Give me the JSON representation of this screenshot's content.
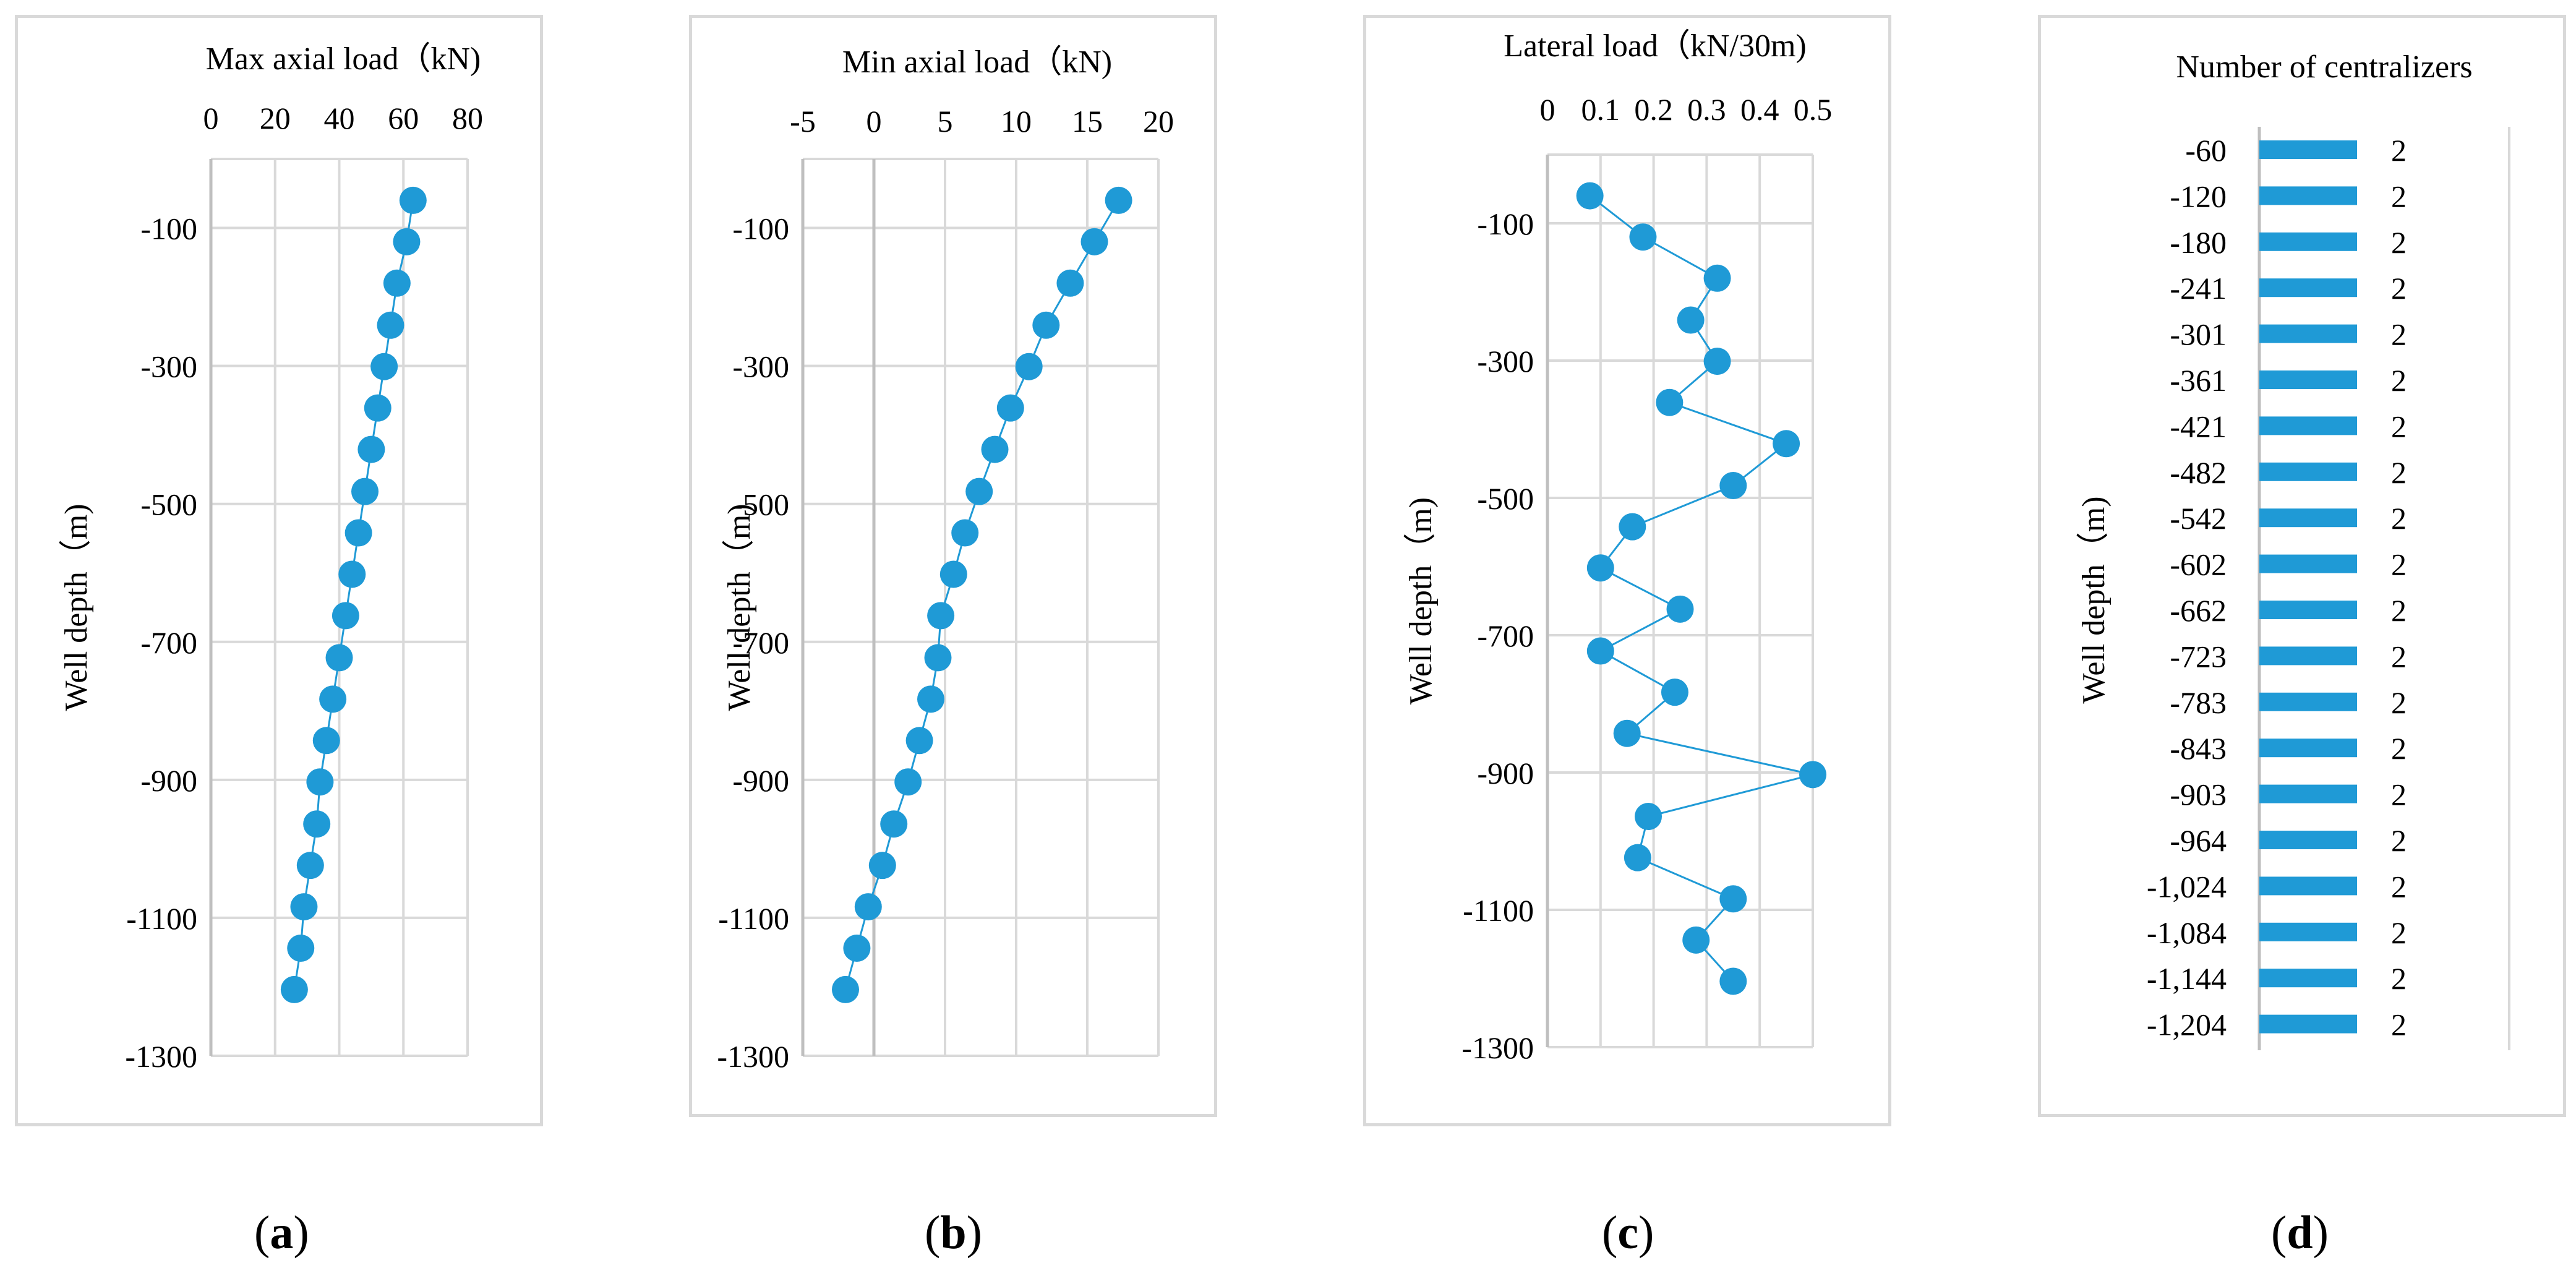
{
  "chart_data": [
    {
      "type": "scatter",
      "title": "Max axial load（kN)",
      "ylabel": "Well depth（m)",
      "x_ticks": [
        "0",
        "20",
        "40",
        "60",
        "80"
      ],
      "xlim": [
        0,
        80
      ],
      "y_ticks": [
        "-100",
        "-300",
        "-500",
        "-700",
        "-900",
        "-1100",
        "-1300"
      ],
      "ylim": [
        -1300,
        0
      ],
      "points": [
        {
          "x": 63,
          "y": -60
        },
        {
          "x": 61,
          "y": -120
        },
        {
          "x": 58,
          "y": -180
        },
        {
          "x": 56,
          "y": -241
        },
        {
          "x": 54,
          "y": -301
        },
        {
          "x": 52,
          "y": -361
        },
        {
          "x": 50,
          "y": -421
        },
        {
          "x": 48,
          "y": -482
        },
        {
          "x": 46,
          "y": -542
        },
        {
          "x": 44,
          "y": -602
        },
        {
          "x": 42,
          "y": -662
        },
        {
          "x": 40,
          "y": -723
        },
        {
          "x": 38,
          "y": -783
        },
        {
          "x": 36,
          "y": -843
        },
        {
          "x": 34,
          "y": -903
        },
        {
          "x": 33,
          "y": -964
        },
        {
          "x": 31,
          "y": -1024
        },
        {
          "x": 29,
          "y": -1084
        },
        {
          "x": 28,
          "y": -1144
        },
        {
          "x": 26,
          "y": -1204
        }
      ],
      "color": "#1f9ad6"
    },
    {
      "type": "scatter",
      "title": "Min axial load（kN)",
      "ylabel": "Well depth（m)",
      "x_ticks": [
        "-5",
        "0",
        "5",
        "10",
        "15",
        "20"
      ],
      "xlim": [
        -5,
        20
      ],
      "y_ticks": [
        "-100",
        "-300",
        "-500",
        "-700",
        "-900",
        "-1100",
        "-1300"
      ],
      "ylim": [
        -1300,
        0
      ],
      "points": [
        {
          "x": 17.2,
          "y": -60
        },
        {
          "x": 15.5,
          "y": -120
        },
        {
          "x": 13.8,
          "y": -180
        },
        {
          "x": 12.1,
          "y": -241
        },
        {
          "x": 10.9,
          "y": -301
        },
        {
          "x": 9.6,
          "y": -361
        },
        {
          "x": 8.5,
          "y": -421
        },
        {
          "x": 7.4,
          "y": -482
        },
        {
          "x": 6.4,
          "y": -542
        },
        {
          "x": 5.6,
          "y": -602
        },
        {
          "x": 4.7,
          "y": -662
        },
        {
          "x": 4.5,
          "y": -723
        },
        {
          "x": 4.0,
          "y": -783
        },
        {
          "x": 3.2,
          "y": -843
        },
        {
          "x": 2.4,
          "y": -903
        },
        {
          "x": 1.4,
          "y": -964
        },
        {
          "x": 0.6,
          "y": -1024
        },
        {
          "x": -0.4,
          "y": -1084
        },
        {
          "x": -1.2,
          "y": -1144
        },
        {
          "x": -2.0,
          "y": -1204
        }
      ],
      "color": "#1f9ad6"
    },
    {
      "type": "line",
      "title": "Lateral load（kN/30m)",
      "ylabel": "Well depth（m)",
      "x_ticks": [
        "0",
        "0.1",
        "0.2",
        "0.3",
        "0.4",
        "0.5"
      ],
      "xlim": [
        0,
        0.5
      ],
      "y_ticks": [
        "-100",
        "-300",
        "-500",
        "-700",
        "-900",
        "-1100",
        "-1300"
      ],
      "ylim": [
        -1300,
        0
      ],
      "points": [
        {
          "x": 0.08,
          "y": -60
        },
        {
          "x": 0.18,
          "y": -120
        },
        {
          "x": 0.32,
          "y": -180
        },
        {
          "x": 0.27,
          "y": -241
        },
        {
          "x": 0.32,
          "y": -301
        },
        {
          "x": 0.23,
          "y": -361
        },
        {
          "x": 0.45,
          "y": -421
        },
        {
          "x": 0.35,
          "y": -482
        },
        {
          "x": 0.16,
          "y": -542
        },
        {
          "x": 0.1,
          "y": -602
        },
        {
          "x": 0.25,
          "y": -662
        },
        {
          "x": 0.1,
          "y": -723
        },
        {
          "x": 0.24,
          "y": -783
        },
        {
          "x": 0.15,
          "y": -843
        },
        {
          "x": 0.5,
          "y": -903
        },
        {
          "x": 0.19,
          "y": -964
        },
        {
          "x": 0.17,
          "y": -1024
        },
        {
          "x": 0.35,
          "y": -1084
        },
        {
          "x": 0.28,
          "y": -1144
        },
        {
          "x": 0.35,
          "y": -1204
        }
      ],
      "color": "#1f9ad6"
    },
    {
      "type": "bar",
      "orientation": "horizontal",
      "title": "Number of centralizers",
      "ylabel": "Well depth（m)",
      "categories": [
        "-60",
        "-120",
        "-180",
        "-241",
        "-301",
        "-361",
        "-421",
        "-482",
        "-542",
        "-602",
        "-662",
        "-723",
        "-783",
        "-843",
        "-903",
        "-964",
        "-1,024",
        "-1,084",
        "-1,144",
        "-1,204"
      ],
      "values": [
        2,
        2,
        2,
        2,
        2,
        2,
        2,
        2,
        2,
        2,
        2,
        2,
        2,
        2,
        2,
        2,
        2,
        2,
        2,
        2
      ],
      "value_labels": [
        "2",
        "2",
        "2",
        "2",
        "2",
        "2",
        "2",
        "2",
        "2",
        "2",
        "2",
        "2",
        "2",
        "2",
        "2",
        "2",
        "2",
        "2",
        "2",
        "2"
      ],
      "color": "#1f9ad6"
    }
  ],
  "sub_labels": [
    {
      "open": "(",
      "letter": "a",
      "close": ")"
    },
    {
      "open": "(",
      "letter": "b",
      "close": ")"
    },
    {
      "open": "(",
      "letter": "c",
      "close": ")"
    },
    {
      "open": "(",
      "letter": "d",
      "close": ")"
    }
  ]
}
